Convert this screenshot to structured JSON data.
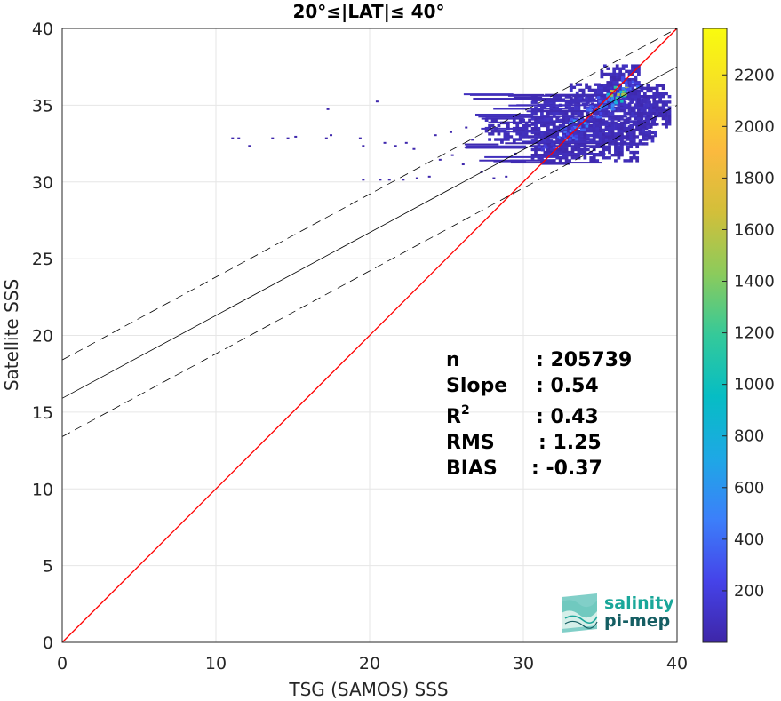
{
  "chart_data": {
    "type": "heatmap",
    "title": "20°≤|LAT|≤ 40°",
    "xlabel": "TSG (SAMOS) SSS",
    "ylabel": "Satellite SSS",
    "xlim": [
      0,
      40
    ],
    "ylim": [
      0,
      40
    ],
    "xticks": [
      0,
      10,
      20,
      30,
      40
    ],
    "yticks": [
      0,
      5,
      10,
      15,
      20,
      25,
      30,
      35,
      40
    ],
    "grid": true,
    "colorbar": {
      "range": [
        0,
        2380
      ],
      "ticks": [
        200,
        400,
        600,
        800,
        1000,
        1200,
        1400,
        1600,
        1800,
        2000,
        2200
      ],
      "colors": [
        "#3e26a8",
        "#4543e9",
        "#3c7ffa",
        "#1ea8e5",
        "#06bdc4",
        "#34c99a",
        "#8bcb5c",
        "#d2bf3a",
        "#fbba3e",
        "#f6de27",
        "#f9fb0e"
      ]
    },
    "lines": [
      {
        "name": "1:1",
        "intercept": 0,
        "slope": 1,
        "style": "solid",
        "color": "#ff0000"
      },
      {
        "name": "fit",
        "intercept": 15.9,
        "slope": 0.54,
        "style": "solid",
        "color": "#000000"
      },
      {
        "name": "fit-upper",
        "intercept": 18.4,
        "slope": 0.54,
        "style": "dashed",
        "color": "#000000"
      },
      {
        "name": "fit-lower",
        "intercept": 13.4,
        "slope": 0.54,
        "style": "dashed",
        "color": "#000000"
      }
    ],
    "density_regions": [
      {
        "x": [
          30.5,
          38.6
        ],
        "y": [
          32.4,
          35.6
        ],
        "level": 80
      },
      {
        "x": [
          27.5,
          38.5
        ],
        "y": [
          32.5,
          34.0
        ],
        "level": 60
      },
      {
        "x": [
          33.0,
          37.5
        ],
        "y": [
          35.0,
          36.3
        ],
        "level": 80
      },
      {
        "x": [
          30.5,
          37.5
        ],
        "y": [
          31.3,
          32.5
        ],
        "level": 50
      },
      {
        "x": [
          35.0,
          37.5
        ],
        "y": [
          35.5,
          37.5
        ],
        "level": 70
      },
      {
        "x": [
          36.8,
          39.5
        ],
        "y": [
          33.5,
          36.2
        ],
        "level": 60
      }
    ],
    "density_core": [
      {
        "x": 35.8,
        "y": 35.6,
        "level": 700
      },
      {
        "x": 36.2,
        "y": 35.9,
        "level": 1200
      },
      {
        "x": 35.2,
        "y": 35.2,
        "level": 500
      },
      {
        "x": 34.5,
        "y": 34.6,
        "level": 300
      },
      {
        "x": 33.5,
        "y": 33.8,
        "level": 400
      },
      {
        "x": 32.8,
        "y": 33.2,
        "level": 300
      },
      {
        "x": 36.8,
        "y": 36.5,
        "level": 300
      },
      {
        "x": 31.5,
        "y": 32.5,
        "level": 150
      }
    ],
    "sparse_points": [
      {
        "x": 11.0,
        "y": 32.9
      },
      {
        "x": 11.4,
        "y": 32.9
      },
      {
        "x": 12.1,
        "y": 32.4
      },
      {
        "x": 13.6,
        "y": 32.9
      },
      {
        "x": 14.6,
        "y": 32.9
      },
      {
        "x": 15.1,
        "y": 33.0
      },
      {
        "x": 17.1,
        "y": 32.9
      },
      {
        "x": 17.4,
        "y": 33.1
      },
      {
        "x": 17.2,
        "y": 34.8
      },
      {
        "x": 19.3,
        "y": 32.9
      },
      {
        "x": 19.5,
        "y": 32.4
      },
      {
        "x": 20.9,
        "y": 32.6
      },
      {
        "x": 21.6,
        "y": 32.4
      },
      {
        "x": 22.3,
        "y": 32.6
      },
      {
        "x": 22.8,
        "y": 32.2
      },
      {
        "x": 20.4,
        "y": 35.3
      },
      {
        "x": 19.5,
        "y": 30.2
      },
      {
        "x": 20.6,
        "y": 30.2
      },
      {
        "x": 21.2,
        "y": 30.2
      },
      {
        "x": 22.1,
        "y": 30.2
      },
      {
        "x": 23.0,
        "y": 30.3
      },
      {
        "x": 23.8,
        "y": 30.4
      },
      {
        "x": 24.5,
        "y": 31.5
      },
      {
        "x": 25.3,
        "y": 31.8
      },
      {
        "x": 26.0,
        "y": 31.2
      },
      {
        "x": 26.6,
        "y": 32.8
      },
      {
        "x": 27.2,
        "y": 30.7
      },
      {
        "x": 28.0,
        "y": 30.3
      },
      {
        "x": 28.8,
        "y": 30.4
      },
      {
        "x": 29.4,
        "y": 31.9
      },
      {
        "x": 26.2,
        "y": 33.6
      },
      {
        "x": 25.2,
        "y": 33.3
      },
      {
        "x": 24.2,
        "y": 33.1
      }
    ]
  },
  "stats": [
    {
      "label": "n",
      "value": ": 205739"
    },
    {
      "label": "Slope",
      "value": ": 0.54"
    },
    {
      "label": "R",
      "sup": "2",
      "value": ": 0.43"
    },
    {
      "label": "RMS",
      "value": ": 1.25"
    },
    {
      "label": "BIAS",
      "value": ": -0.37"
    }
  ],
  "logo": {
    "line1": "salinity",
    "line2": "pi-mep",
    "color1": "#1aa79a",
    "color2": "#155e63"
  }
}
